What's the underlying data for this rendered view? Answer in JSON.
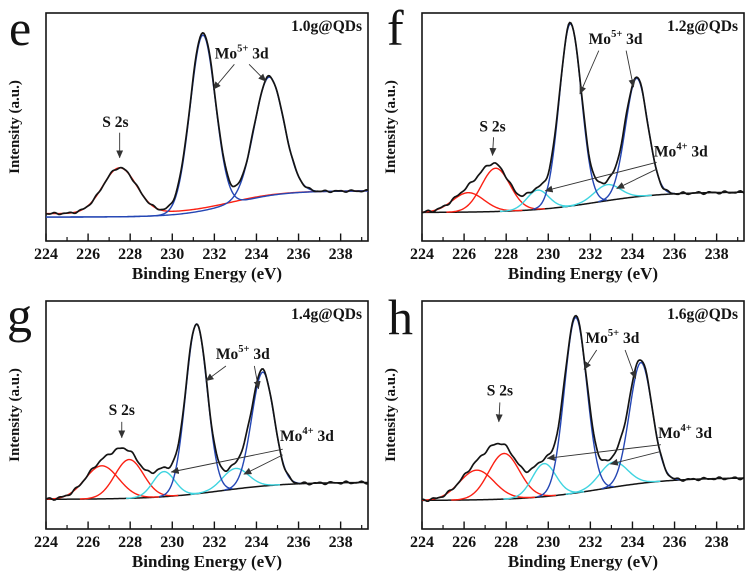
{
  "figure": {
    "xlabel": "Binding Energy (eV)",
    "ylabel": "Intensity (a.u.)",
    "x_tick_labels": [
      224,
      226,
      228,
      230,
      232,
      234,
      236,
      238
    ],
    "x_minor_ticks": [
      225,
      227,
      229,
      231,
      233,
      235,
      237,
      239
    ],
    "x_range": [
      224,
      239.3
    ],
    "colors": {
      "experimental": "#141414",
      "mo5_fit": "#2446b4",
      "s2s_fit": "#fb2013",
      "mo4_fit": "#3fd4e0",
      "sample_label": "#fb2013",
      "frame": "#141414",
      "arrow": "#333333"
    }
  },
  "chart_data": [
    {
      "type": "line",
      "panel_letter": "e",
      "sample_label": "1.0g@QDs",
      "noise_amp": 0.003,
      "noise_seed": 1.0,
      "background": {
        "b0": 0.12,
        "amp": 0.1,
        "center": 232.8,
        "width": 1.2,
        "color_role": "s2s_fit",
        "draw_line": false
      },
      "fit_baseline": {
        "b0": 0.105,
        "amp": 0.115,
        "center": 232.8,
        "width": 1.2,
        "color_role": "mo5_fit"
      },
      "peaks": [
        {
          "assignment": "S 2s",
          "center": 227.5,
          "height": 0.2,
          "sigma": 0.8,
          "color_role": "s2s_fit",
          "baseline": "background",
          "span": "full"
        },
        {
          "assignment": "Mo5+ 3d",
          "center": 231.45,
          "height": 0.77,
          "sigma": 0.6,
          "color_role": "mo5_fit",
          "baseline": "fit",
          "span": "full"
        },
        {
          "assignment": "Mo5+ 3d",
          "center": 234.6,
          "height": 0.52,
          "sigma": 0.7,
          "color_role": "mo5_fit",
          "baseline": "fit",
          "span": "full"
        }
      ],
      "annotations": [
        {
          "base": "S 2s",
          "sup": "",
          "rest": "",
          "x": 227.3,
          "y": 0.5,
          "arrows": [
            {
              "x1": 227.5,
              "y1": 0.475,
              "x2": 227.5,
              "y2": 0.365
            }
          ]
        },
        {
          "base": "Mo",
          "sup": "5+",
          "rest": " 3d",
          "x": 233.3,
          "y": 0.8,
          "arrows": [
            {
              "x1": 232.95,
              "y1": 0.775,
              "x2": 231.95,
              "y2": 0.665
            },
            {
              "x1": 233.65,
              "y1": 0.775,
              "x2": 234.45,
              "y2": 0.7
            }
          ]
        }
      ]
    },
    {
      "type": "line",
      "panel_letter": "f",
      "sample_label": "1.2g@QDs",
      "noise_amp": 0.004,
      "noise_seed": 2.3,
      "background": {
        "b0": 0.125,
        "amp": 0.09,
        "center": 232.3,
        "width": 1.6,
        "color_role": "experimental",
        "draw_line": true
      },
      "peaks": [
        {
          "assignment": "S 2s",
          "center": 226.2,
          "height": 0.085,
          "sigma": 0.75,
          "color_role": "s2s_fit",
          "baseline": "background",
          "span": "local"
        },
        {
          "assignment": "S 2s",
          "center": 227.5,
          "height": 0.19,
          "sigma": 0.68,
          "color_role": "s2s_fit",
          "baseline": "background",
          "span": "local"
        },
        {
          "assignment": "Mo4+ 3d",
          "center": 229.5,
          "height": 0.085,
          "sigma": 0.52,
          "color_role": "mo4_fit",
          "baseline": "background",
          "span": "local"
        },
        {
          "assignment": "Mo4+ 3d",
          "center": 232.8,
          "height": 0.07,
          "sigma": 0.62,
          "color_role": "mo4_fit",
          "baseline": "background",
          "span": "local"
        },
        {
          "assignment": "Mo5+ 3d",
          "center": 231.05,
          "height": 0.8,
          "sigma": 0.52,
          "color_role": "mo5_fit",
          "baseline": "background",
          "span": "local"
        },
        {
          "assignment": "Mo5+ 3d",
          "center": 234.2,
          "height": 0.52,
          "sigma": 0.53,
          "color_role": "mo5_fit",
          "baseline": "background",
          "span": "local"
        }
      ],
      "annotations": [
        {
          "base": "S 2s",
          "sup": "",
          "rest": "",
          "x": 227.35,
          "y": 0.48,
          "arrows": [
            {
              "x1": 227.4,
              "y1": 0.455,
              "x2": 227.35,
              "y2": 0.375
            }
          ]
        },
        {
          "base": "Mo",
          "sup": "5+",
          "rest": " 3d",
          "x": 233.2,
          "y": 0.865,
          "arrows": [
            {
              "x1": 232.4,
              "y1": 0.835,
              "x2": 231.5,
              "y2": 0.645
            },
            {
              "x1": 233.7,
              "y1": 0.835,
              "x2": 234.05,
              "y2": 0.675
            }
          ]
        },
        {
          "base": "Mo",
          "sup": "4+",
          "rest": " 3d",
          "x": 236.3,
          "y": 0.37,
          "arrows": [
            {
              "x1": 235.15,
              "y1": 0.345,
              "x2": 229.85,
              "y2": 0.22
            },
            {
              "x1": 235.15,
              "y1": 0.315,
              "x2": 233.25,
              "y2": 0.23
            }
          ]
        }
      ]
    },
    {
      "type": "line",
      "panel_letter": "g",
      "sample_label": "1.4g@QDs",
      "noise_amp": 0.004,
      "noise_seed": 3.7,
      "background": {
        "b0": 0.13,
        "amp": 0.075,
        "center": 232.3,
        "width": 1.6,
        "color_role": "experimental",
        "draw_line": true
      },
      "peaks": [
        {
          "assignment": "S 2s",
          "center": 226.65,
          "height": 0.145,
          "sigma": 0.8,
          "color_role": "s2s_fit",
          "baseline": "background",
          "span": "local"
        },
        {
          "assignment": "S 2s",
          "center": 227.95,
          "height": 0.17,
          "sigma": 0.68,
          "color_role": "s2s_fit",
          "baseline": "background",
          "span": "local"
        },
        {
          "assignment": "Mo4+ 3d",
          "center": 229.6,
          "height": 0.11,
          "sigma": 0.52,
          "color_role": "mo4_fit",
          "baseline": "background",
          "span": "local"
        },
        {
          "assignment": "Mo4+ 3d",
          "center": 233.0,
          "height": 0.09,
          "sigma": 0.62,
          "color_role": "mo4_fit",
          "baseline": "background",
          "span": "local"
        },
        {
          "assignment": "Mo5+ 3d",
          "center": 231.15,
          "height": 0.745,
          "sigma": 0.51,
          "color_role": "mo5_fit",
          "baseline": "background",
          "span": "local"
        },
        {
          "assignment": "Mo5+ 3d",
          "center": 234.3,
          "height": 0.5,
          "sigma": 0.53,
          "color_role": "mo5_fit",
          "baseline": "background",
          "span": "local"
        }
      ],
      "annotations": [
        {
          "base": "S 2s",
          "sup": "",
          "rest": "",
          "x": 227.6,
          "y": 0.5,
          "arrows": [
            {
              "x1": 227.6,
              "y1": 0.47,
              "x2": 227.6,
              "y2": 0.4
            }
          ]
        },
        {
          "base": "Mo",
          "sup": "5+",
          "rest": " 3d",
          "x": 233.35,
          "y": 0.745,
          "arrows": [
            {
              "x1": 232.55,
              "y1": 0.715,
              "x2": 231.6,
              "y2": 0.65
            },
            {
              "x1": 233.9,
              "y1": 0.715,
              "x2": 234.1,
              "y2": 0.615
            }
          ]
        },
        {
          "base": "Mo",
          "sup": "4+",
          "rest": " 3d",
          "x": 236.4,
          "y": 0.385,
          "arrows": [
            {
              "x1": 235.25,
              "y1": 0.35,
              "x2": 229.95,
              "y2": 0.25
            },
            {
              "x1": 235.25,
              "y1": 0.325,
              "x2": 233.4,
              "y2": 0.24
            }
          ]
        }
      ]
    },
    {
      "type": "line",
      "panel_letter": "h",
      "sample_label": "1.6g@QDs",
      "noise_amp": 0.004,
      "noise_seed": 5.1,
      "background": {
        "b0": 0.125,
        "amp": 0.1,
        "center": 232.5,
        "width": 1.7,
        "color_role": "experimental",
        "draw_line": true
      },
      "peaks": [
        {
          "assignment": "S 2s",
          "center": 226.6,
          "height": 0.13,
          "sigma": 0.82,
          "color_role": "s2s_fit",
          "baseline": "background",
          "span": "local"
        },
        {
          "assignment": "S 2s",
          "center": 227.9,
          "height": 0.2,
          "sigma": 0.73,
          "color_role": "s2s_fit",
          "baseline": "background",
          "span": "local"
        },
        {
          "assignment": "Mo4+ 3d",
          "center": 229.8,
          "height": 0.145,
          "sigma": 0.56,
          "color_role": "mo4_fit",
          "baseline": "background",
          "span": "local"
        },
        {
          "assignment": "Mo4+ 3d",
          "center": 233.1,
          "height": 0.11,
          "sigma": 0.66,
          "color_role": "mo4_fit",
          "baseline": "background",
          "span": "local"
        },
        {
          "assignment": "Mo5+ 3d",
          "center": 231.3,
          "height": 0.77,
          "sigma": 0.53,
          "color_role": "mo5_fit",
          "baseline": "background",
          "span": "local"
        },
        {
          "assignment": "Mo5+ 3d",
          "center": 234.4,
          "height": 0.53,
          "sigma": 0.54,
          "color_role": "mo5_fit",
          "baseline": "background",
          "span": "local"
        }
      ],
      "annotations": [
        {
          "base": "S 2s",
          "sup": "",
          "rest": "",
          "x": 227.7,
          "y": 0.585,
          "arrows": [
            {
              "x1": 227.7,
              "y1": 0.555,
              "x2": 227.65,
              "y2": 0.47
            }
          ]
        },
        {
          "base": "Mo",
          "sup": "5+",
          "rest": " 3d",
          "x": 233.05,
          "y": 0.815,
          "arrows": [
            {
              "x1": 232.3,
              "y1": 0.785,
              "x2": 231.7,
              "y2": 0.7
            },
            {
              "x1": 233.65,
              "y1": 0.785,
              "x2": 234.15,
              "y2": 0.66
            }
          ]
        },
        {
          "base": "Mo",
          "sup": "4+",
          "rest": " 3d",
          "x": 236.5,
          "y": 0.4,
          "arrows": [
            {
              "x1": 235.35,
              "y1": 0.37,
              "x2": 229.95,
              "y2": 0.31
            },
            {
              "x1": 235.35,
              "y1": 0.34,
              "x2": 232.95,
              "y2": 0.285
            }
          ]
        }
      ]
    }
  ]
}
